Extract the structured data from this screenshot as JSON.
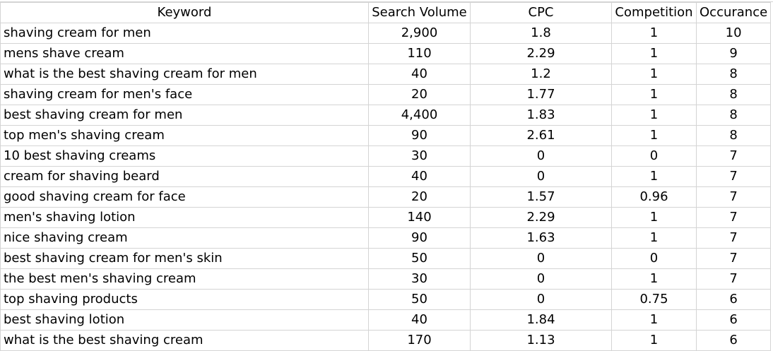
{
  "headers": {
    "keyword": "Keyword",
    "search_volume": "Search Volume",
    "cpc": "CPC",
    "competition": "Competition",
    "occurance": "Occurance"
  },
  "rows": [
    {
      "keyword": "shaving cream for men",
      "search_volume": "2,900",
      "cpc": "1.8",
      "competition": "1",
      "occurance": "10"
    },
    {
      "keyword": "mens shave cream",
      "search_volume": "110",
      "cpc": "2.29",
      "competition": "1",
      "occurance": "9"
    },
    {
      "keyword": "what is the best shaving cream for men",
      "search_volume": "40",
      "cpc": "1.2",
      "competition": "1",
      "occurance": "8"
    },
    {
      "keyword": "shaving cream for men's face",
      "search_volume": "20",
      "cpc": "1.77",
      "competition": "1",
      "occurance": "8"
    },
    {
      "keyword": "best shaving cream for men",
      "search_volume": "4,400",
      "cpc": "1.83",
      "competition": "1",
      "occurance": "8"
    },
    {
      "keyword": "top men's shaving cream",
      "search_volume": "90",
      "cpc": "2.61",
      "competition": "1",
      "occurance": "8"
    },
    {
      "keyword": "10 best shaving creams",
      "search_volume": "30",
      "cpc": "0",
      "competition": "0",
      "occurance": "7"
    },
    {
      "keyword": "cream for shaving beard",
      "search_volume": "40",
      "cpc": "0",
      "competition": "1",
      "occurance": "7"
    },
    {
      "keyword": "good shaving cream for face",
      "search_volume": "20",
      "cpc": "1.57",
      "competition": "0.96",
      "occurance": "7"
    },
    {
      "keyword": "men's shaving lotion",
      "search_volume": "140",
      "cpc": "2.29",
      "competition": "1",
      "occurance": "7"
    },
    {
      "keyword": "nice shaving cream",
      "search_volume": "90",
      "cpc": "1.63",
      "competition": "1",
      "occurance": "7"
    },
    {
      "keyword": "best shaving cream for men's skin",
      "search_volume": "50",
      "cpc": "0",
      "competition": "0",
      "occurance": "7"
    },
    {
      "keyword": "the best men's shaving cream",
      "search_volume": "30",
      "cpc": "0",
      "competition": "1",
      "occurance": "7"
    },
    {
      "keyword": "top shaving products",
      "search_volume": "50",
      "cpc": "0",
      "competition": "0.75",
      "occurance": "6"
    },
    {
      "keyword": "best shaving lotion",
      "search_volume": "40",
      "cpc": "1.84",
      "competition": "1",
      "occurance": "6"
    },
    {
      "keyword": "what is the best shaving cream",
      "search_volume": "170",
      "cpc": "1.13",
      "competition": "1",
      "occurance": "6"
    }
  ]
}
